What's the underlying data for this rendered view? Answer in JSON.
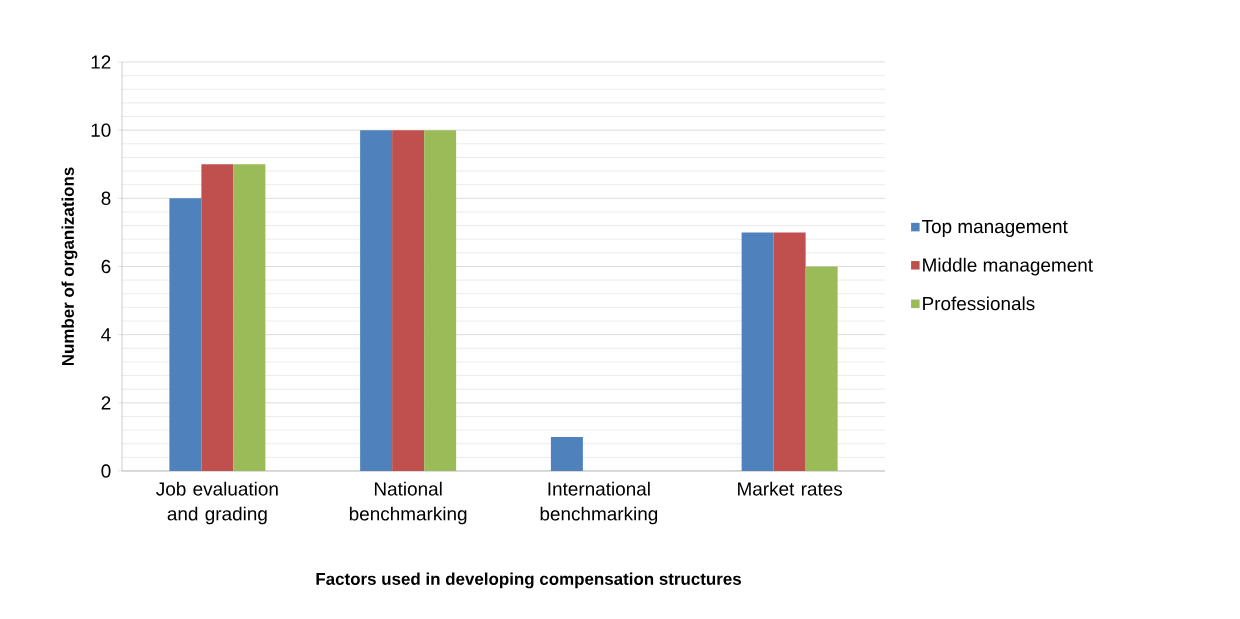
{
  "chart_data": {
    "type": "bar",
    "xlabel": "Factors  used in developing compensation structures",
    "ylabel": "Number of organizations",
    "categories": [
      "Job evaluation and grading",
      "National benchmarking",
      "International benchmarking",
      "Market rates"
    ],
    "series": [
      {
        "name": "Top management",
        "color": "#4f81bd",
        "values": [
          8,
          10,
          1,
          7
        ]
      },
      {
        "name": "Middle management",
        "color": "#c0504d",
        "values": [
          9,
          10,
          0,
          7
        ]
      },
      {
        "name": "Professionals",
        "color": "#9bbb59",
        "values": [
          9,
          10,
          0,
          6
        ]
      }
    ],
    "ylim": [
      0,
      12
    ],
    "yticks": [
      0,
      2,
      4,
      6,
      8,
      10,
      12
    ],
    "grid": "y",
    "legend": "right"
  }
}
